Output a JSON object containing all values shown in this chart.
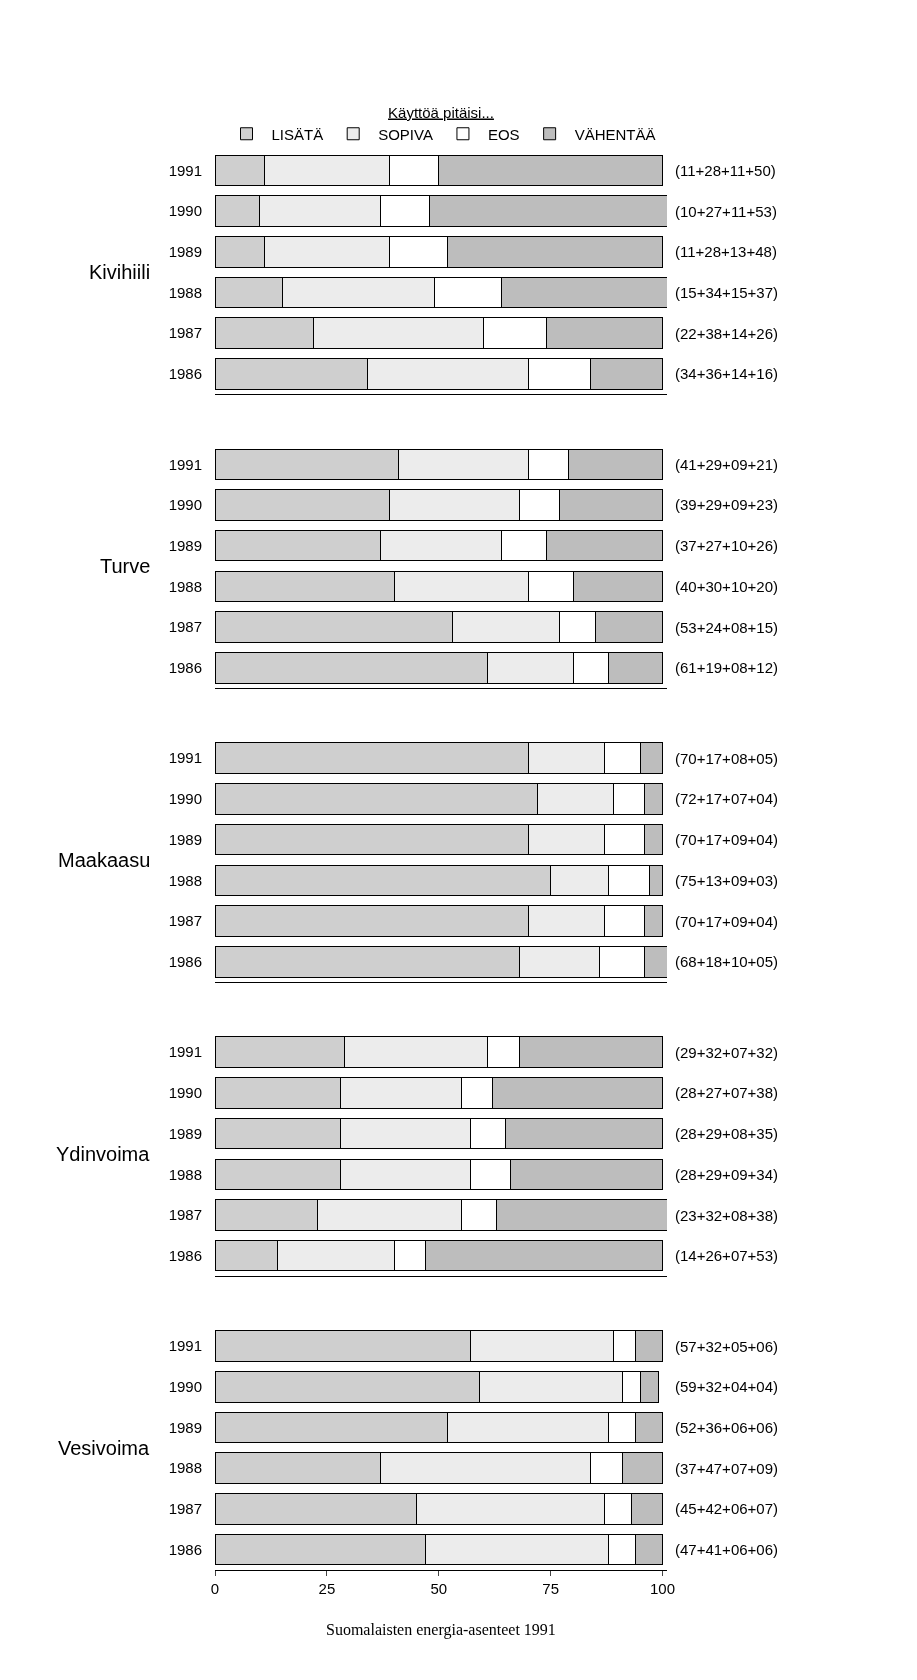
{
  "chart_data": [
    {
      "type": "bar",
      "orientation": "horizontal",
      "stacked": true,
      "legend": "top",
      "legend_title": "Käyttöä pitäisi...",
      "ylabel": "Kivihiili",
      "categories": [
        "1991",
        "1990",
        "1989",
        "1988",
        "1987",
        "1986"
      ],
      "xlim": [
        0,
        101
      ],
      "xticks": [
        0,
        25,
        50,
        75,
        100
      ],
      "tick_labels": "y",
      "series": [
        {
          "name": "LISÄTÄ",
          "color": "#cfcfcf",
          "values": [
            11,
            10,
            11,
            15,
            22,
            34
          ]
        },
        {
          "name": "SOPIVA",
          "color": "#ececec",
          "values": [
            28,
            27,
            28,
            34,
            38,
            36
          ]
        },
        {
          "name": "EOS",
          "color": "#ffffff",
          "values": [
            11,
            11,
            13,
            15,
            14,
            14
          ]
        },
        {
          "name": "VÄHENTÄÄ",
          "color": "#bdbdbd",
          "values": [
            50,
            53,
            48,
            37,
            26,
            16
          ]
        }
      ],
      "totals": [
        "(11+28+11+50)",
        "(10+27+11+53)",
        "(11+28+13+48)",
        "(15+34+15+37)",
        "(22+38+14+26)",
        "(34+36+14+16)"
      ]
    },
    {
      "type": "bar",
      "orientation": "horizontal",
      "stacked": true,
      "ylabel": "Turve",
      "categories": [
        "1991",
        "1990",
        "1989",
        "1988",
        "1987",
        "1986"
      ],
      "xlim": [
        0,
        101
      ],
      "xticks": [
        0,
        25,
        50,
        75,
        100
      ],
      "tick_labels": "y",
      "series": [
        {
          "color": "#cfcfcf",
          "values": [
            41,
            39,
            37,
            40,
            53,
            61
          ]
        },
        {
          "color": "#ececec",
          "values": [
            29,
            29,
            27,
            30,
            24,
            19
          ]
        },
        {
          "color": "#ffffff",
          "values": [
            9,
            9,
            10,
            10,
            8,
            8
          ]
        },
        {
          "color": "#bdbdbd",
          "values": [
            21,
            23,
            26,
            20,
            15,
            12
          ]
        }
      ],
      "totals": [
        "(41+29+09+21)",
        "(39+29+09+23)",
        "(37+27+10+26)",
        "(40+30+10+20)",
        "(53+24+08+15)",
        "(61+19+08+12)"
      ]
    },
    {
      "type": "bar",
      "orientation": "horizontal",
      "stacked": true,
      "ylabel": "Maakaasu",
      "categories": [
        "1991",
        "1990",
        "1989",
        "1988",
        "1987",
        "1986"
      ],
      "xlim": [
        0,
        101
      ],
      "xticks": [
        0,
        25,
        50,
        75,
        100
      ],
      "tick_labels": "y",
      "series": [
        {
          "color": "#cfcfcf",
          "values": [
            70,
            72,
            70,
            75,
            70,
            68
          ]
        },
        {
          "color": "#ececec",
          "values": [
            17,
            17,
            17,
            13,
            17,
            18
          ]
        },
        {
          "color": "#ffffff",
          "values": [
            8,
            7,
            9,
            9,
            9,
            10
          ]
        },
        {
          "color": "#bdbdbd",
          "values": [
            5,
            4,
            4,
            3,
            4,
            5
          ]
        }
      ],
      "totals": [
        "(70+17+08+05)",
        "(72+17+07+04)",
        "(70+17+09+04)",
        "(75+13+09+03)",
        "(70+17+09+04)",
        "(68+18+10+05)"
      ]
    },
    {
      "type": "bar",
      "orientation": "horizontal",
      "stacked": true,
      "ylabel": "Ydinvoima",
      "categories": [
        "1991",
        "1990",
        "1989",
        "1988",
        "1987",
        "1986"
      ],
      "xlim": [
        0,
        101
      ],
      "xticks": [
        0,
        25,
        50,
        75,
        100
      ],
      "tick_labels": "y",
      "series": [
        {
          "color": "#cfcfcf",
          "values": [
            29,
            28,
            28,
            28,
            23,
            14
          ]
        },
        {
          "color": "#ececec",
          "values": [
            32,
            27,
            29,
            29,
            32,
            26
          ]
        },
        {
          "color": "#ffffff",
          "values": [
            7,
            7,
            8,
            9,
            8,
            7
          ]
        },
        {
          "color": "#bdbdbd",
          "values": [
            32,
            38,
            35,
            34,
            38,
            53
          ]
        }
      ],
      "totals": [
        "(29+32+07+32)",
        "(28+27+07+38)",
        "(28+29+08+35)",
        "(28+29+09+34)",
        "(23+32+08+38)",
        "(14+26+07+53)"
      ]
    },
    {
      "type": "bar",
      "orientation": "horizontal",
      "stacked": true,
      "ylabel": "Vesivoima",
      "categories": [
        "1991",
        "1990",
        "1989",
        "1988",
        "1987",
        "1986"
      ],
      "xlim": [
        0,
        101
      ],
      "xticks": [
        0,
        25,
        50,
        75,
        100
      ],
      "series": [
        {
          "color": "#cfcfcf",
          "values": [
            57,
            59,
            52,
            37,
            45,
            47
          ]
        },
        {
          "color": "#ececec",
          "values": [
            32,
            32,
            36,
            47,
            42,
            41
          ]
        },
        {
          "color": "#ffffff",
          "values": [
            5,
            4,
            6,
            7,
            6,
            6
          ]
        },
        {
          "color": "#bdbdbd",
          "values": [
            6,
            4,
            6,
            9,
            7,
            6
          ]
        }
      ],
      "totals": [
        "(57+32+05+06)",
        "(59+32+04+04)",
        "(52+36+06+06)",
        "(37+47+07+09)",
        "(45+42+06+07)",
        "(47+41+06+06)"
      ],
      "annotations": [
        "Suomalaisten energia-asenteet 1991"
      ]
    }
  ]
}
